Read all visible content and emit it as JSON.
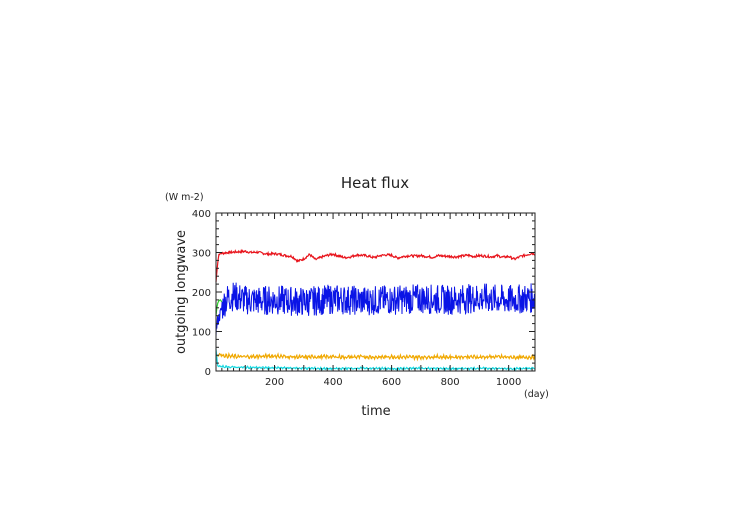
{
  "chart_data": {
    "type": "line",
    "title": "Heat flux",
    "ylabel": "outgoing longwave",
    "yunits": "(W m-2)",
    "xlabel": "time",
    "xunits": "(day)",
    "xlim": [
      0,
      1090
    ],
    "ylim": [
      0,
      400
    ],
    "xticks_major": [
      200,
      400,
      600,
      800,
      1000
    ],
    "yticks_major": [
      0,
      100,
      200,
      300,
      400
    ],
    "grid": false,
    "series": [
      {
        "color": "#e8141c",
        "x": [
          0,
          5,
          10,
          20,
          40,
          60,
          80,
          100,
          120,
          140,
          160,
          180,
          200,
          220,
          240,
          260,
          280,
          300,
          320,
          340,
          360,
          380,
          400,
          420,
          440,
          460,
          480,
          500,
          520,
          540,
          560,
          580,
          600,
          620,
          640,
          660,
          680,
          700,
          720,
          740,
          760,
          780,
          800,
          820,
          840,
          860,
          880,
          900,
          920,
          940,
          960,
          980,
          1000,
          1020,
          1040,
          1060,
          1080,
          1090
        ],
        "y": [
          225,
          270,
          295,
          298,
          300,
          301,
          302,
          303,
          300,
          301,
          298,
          296,
          297,
          295,
          292,
          290,
          278,
          284,
          295,
          282,
          288,
          293,
          296,
          291,
          287,
          289,
          294,
          293,
          291,
          287,
          292,
          294,
          293,
          286,
          290,
          292,
          291,
          292,
          290,
          288,
          292,
          291,
          290,
          289,
          291,
          293,
          290,
          292,
          291,
          289,
          292,
          288,
          290,
          283,
          290,
          294,
          298,
          296
        ]
      },
      {
        "color": "#2ad12a",
        "x": [
          0,
          3,
          6,
          10,
          15,
          20
        ],
        "y": [
          140,
          160,
          172,
          178,
          180,
          175
        ]
      },
      {
        "color": "#0a14e6",
        "x": [
          0,
          5,
          10,
          15,
          20,
          30,
          40,
          60,
          80,
          100,
          150,
          200,
          300,
          400,
          500,
          600,
          700,
          800,
          900,
          1000,
          1090
        ],
        "y": [
          100,
          125,
          135,
          145,
          160,
          175,
          185,
          190,
          185,
          180,
          178,
          180,
          175,
          182,
          178,
          180,
          183,
          180,
          185,
          180,
          185
        ]
      },
      {
        "color": "#f0a800",
        "x": [
          0,
          5,
          10,
          20,
          40,
          60,
          100,
          150,
          200,
          250,
          300,
          350,
          400,
          450,
          500,
          550,
          600,
          650,
          700,
          750,
          800,
          850,
          900,
          950,
          1000,
          1050,
          1090
        ],
        "y": [
          28,
          40,
          42,
          40,
          38,
          37,
          36,
          37,
          38,
          36,
          35,
          36,
          36,
          35,
          36,
          35,
          36,
          35,
          35,
          36,
          35,
          36,
          35,
          36,
          35,
          34,
          36
        ]
      },
      {
        "color": "#16d8e0",
        "x": [
          0,
          5,
          10,
          20,
          50,
          100,
          200,
          300,
          400,
          500,
          600,
          700,
          800,
          900,
          1000,
          1090
        ],
        "y": [
          55,
          15,
          12,
          11,
          10,
          9,
          8,
          7,
          6,
          7,
          6,
          7,
          6,
          7,
          6,
          7
        ]
      }
    ]
  }
}
